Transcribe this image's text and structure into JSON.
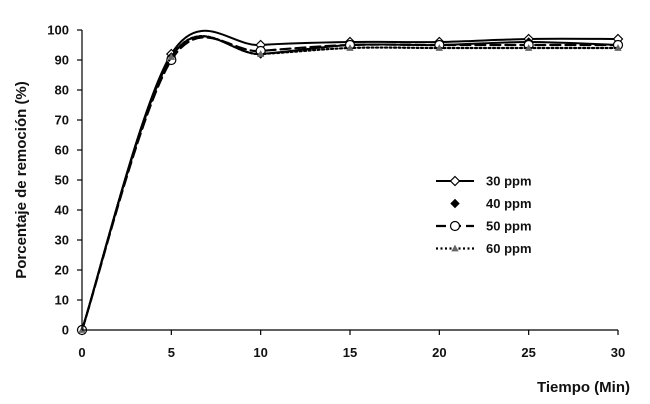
{
  "chart_data": {
    "type": "line",
    "title": "",
    "xlabel": "Tiempo (Min)",
    "ylabel": "Porcentaje de remoción (%)",
    "xlim": [
      0,
      30
    ],
    "ylim": [
      0,
      100
    ],
    "x_ticks": [
      0,
      5,
      10,
      15,
      20,
      25,
      30
    ],
    "y_ticks": [
      0,
      10,
      20,
      30,
      40,
      50,
      60,
      70,
      80,
      90,
      100
    ],
    "grid": false,
    "legend_position": "right",
    "x": [
      0,
      5,
      10,
      15,
      20,
      25,
      30
    ],
    "series": [
      {
        "name": "30 ppm",
        "values": [
          0,
          92,
          95,
          96,
          96,
          97,
          97
        ],
        "line": "solid",
        "marker": "diamond-open",
        "color": "#000000"
      },
      {
        "name": "40 ppm",
        "values": [
          0,
          91,
          92,
          95,
          95,
          96,
          95
        ],
        "line": "solid",
        "marker": "diamond-filled",
        "color": "#000000"
      },
      {
        "name": "50 ppm",
        "values": [
          0,
          90,
          93,
          95,
          95,
          95,
          95
        ],
        "line": "dashed",
        "marker": "circle-open",
        "color": "#000000"
      },
      {
        "name": "60 ppm",
        "values": [
          0,
          91,
          92,
          94,
          94,
          94,
          94
        ],
        "line": "dotted",
        "marker": "triangle",
        "color": "#000000"
      }
    ]
  }
}
